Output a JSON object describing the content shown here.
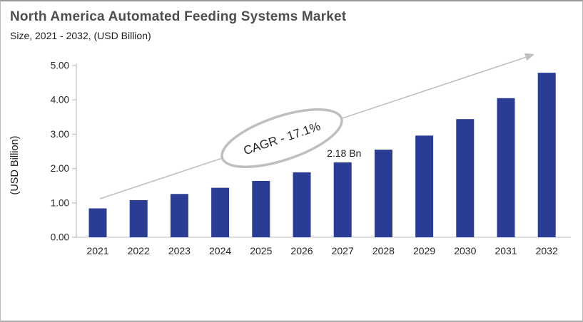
{
  "header": {
    "title": "North America Automated Feeding Systems Market",
    "subtitle": "Size, 2021 - 2032, (USD Billion)"
  },
  "chart_data": {
    "type": "bar",
    "title": "North America Automated Feeding Systems Market",
    "subtitle": "Size, 2021 - 2032, (USD Billion)",
    "categories": [
      "2021",
      "2022",
      "2023",
      "2024",
      "2025",
      "2026",
      "2027",
      "2028",
      "2029",
      "2030",
      "2031",
      "2032"
    ],
    "values": [
      0.84,
      1.08,
      1.26,
      1.44,
      1.64,
      1.89,
      2.18,
      2.55,
      2.96,
      3.44,
      4.05,
      4.79
    ],
    "xlabel": "",
    "ylabel": "(USD Billion)",
    "ylim": [
      0,
      5
    ],
    "ytick_labels": [
      "0.00",
      "1.00",
      "2.00",
      "3.00",
      "4.00",
      "5.00"
    ],
    "grid": false,
    "legend": "none",
    "annotations": {
      "cagr_label": "CAGR - 17.1%",
      "data_label": {
        "text": "2.18 Bn",
        "category": "2027"
      },
      "trend_arrow": true
    },
    "colors": {
      "bar": "#2b3c94",
      "axis": "#bfbfbf",
      "baseline": "#d4d4d4",
      "arrow": "#bfbfbf",
      "ellipse_stroke": "#bfbfbf",
      "annotation_text": "#262626",
      "tick_text": "#262626"
    }
  }
}
